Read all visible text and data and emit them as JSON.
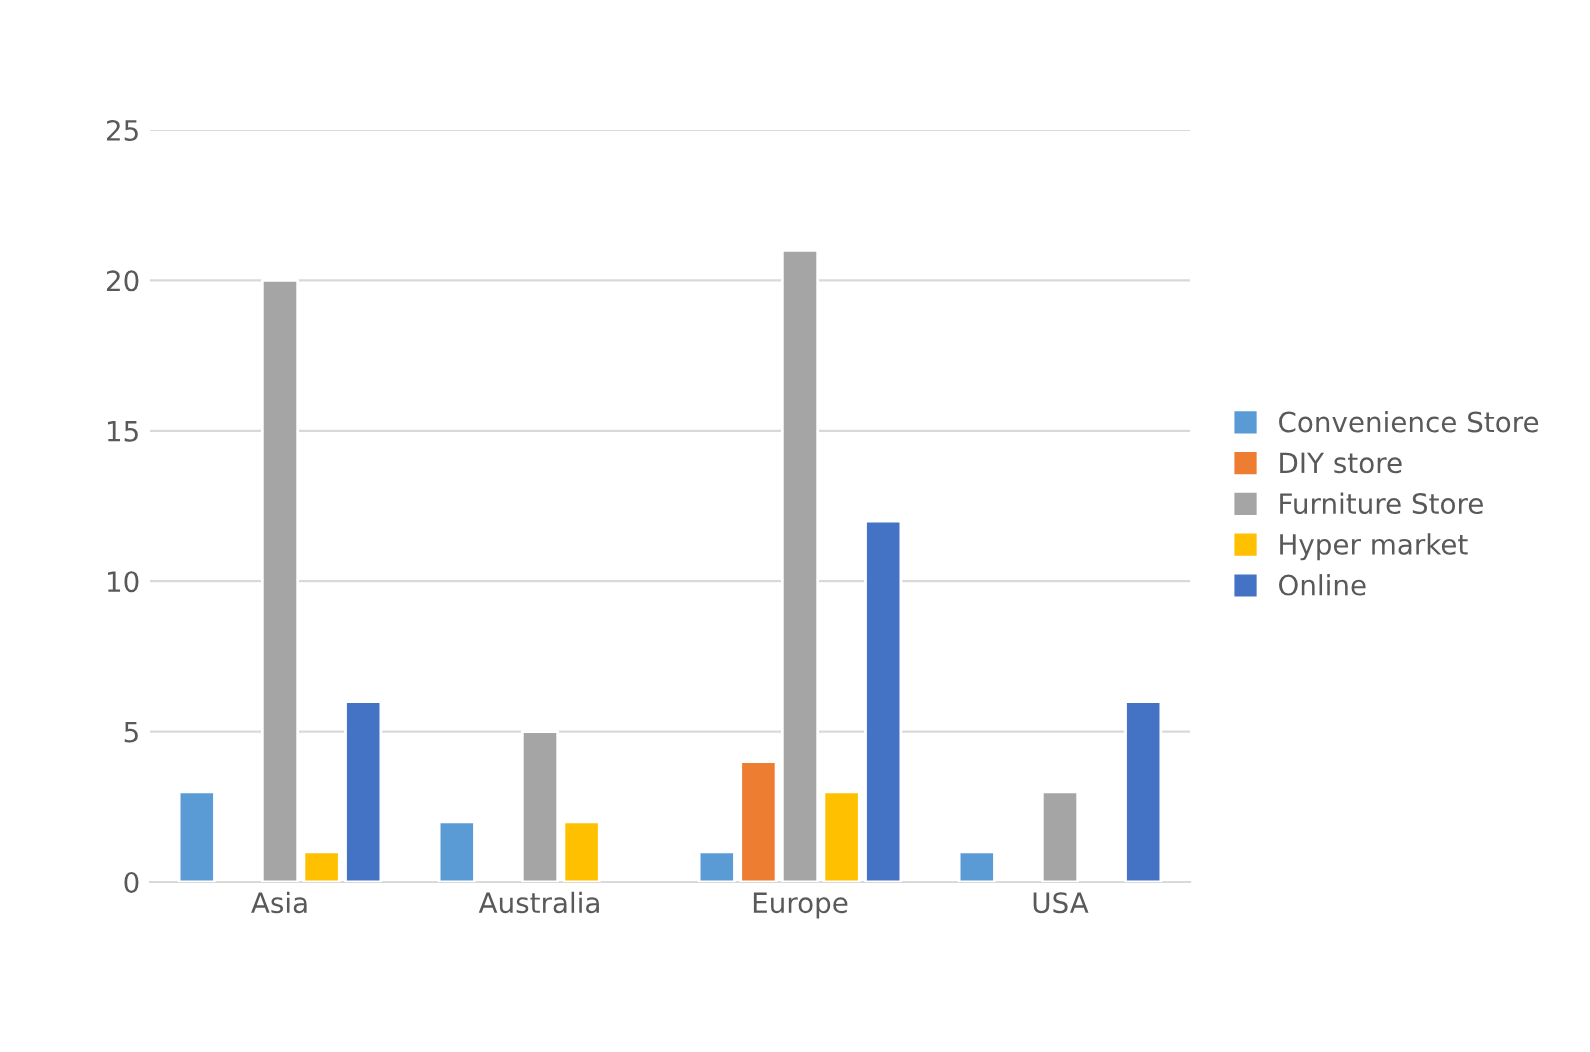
{
  "chart_data": {
    "type": "bar",
    "categories": [
      "Asia",
      "Australia",
      "Europe",
      "USA"
    ],
    "series": [
      {
        "name": "Convenience Store",
        "color": "#5b9bd5",
        "values": [
          3,
          2,
          1,
          1
        ]
      },
      {
        "name": "DIY store",
        "color": "#ed7d31",
        "values": [
          null,
          null,
          4,
          null
        ]
      },
      {
        "name": "Furniture Store",
        "color": "#a5a5a5",
        "values": [
          20,
          5,
          21,
          3
        ]
      },
      {
        "name": "Hyper market",
        "color": "#ffc000",
        "values": [
          1,
          2,
          3,
          null
        ]
      },
      {
        "name": "Online",
        "color": "#4472c4",
        "values": [
          6,
          null,
          12,
          6
        ]
      }
    ],
    "ylim": [
      0,
      25
    ],
    "yticks": [
      0,
      5,
      10,
      15,
      20,
      25
    ],
    "grid": "y",
    "legend": "right"
  }
}
